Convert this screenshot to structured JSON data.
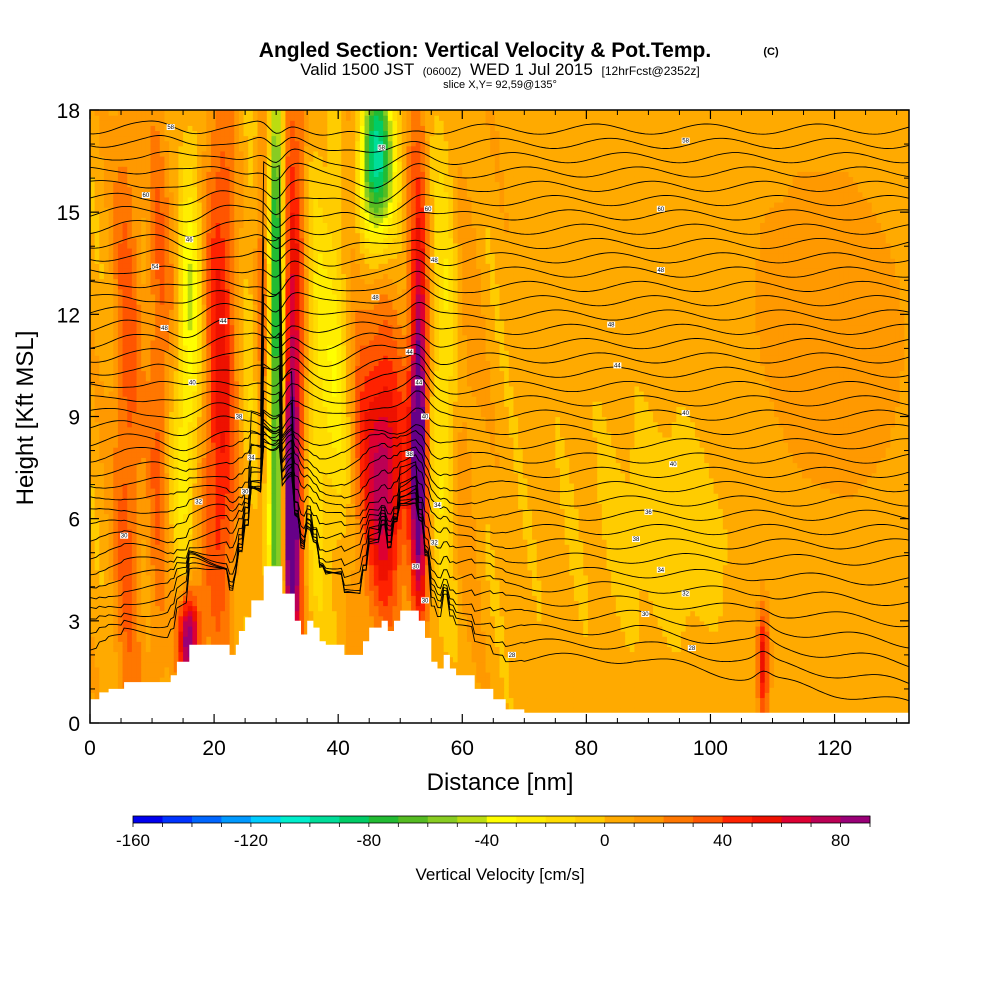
{
  "chart_data": {
    "type": "heatmap",
    "title": "Angled Section: Vertical Velocity & Pot.Temp.",
    "title_unit": "(C)",
    "subtitle_main": "Valid 1500 JST",
    "subtitle_z": "(0600Z)",
    "subtitle_date": "WED 1 Jul 2015",
    "subtitle_fcst": "[12hrFcst@2352z]",
    "slice_info": "slice X,Y= 92,59@135°",
    "xlabel": "Distance [nm]",
    "ylabel": "Height [Kft MSL]",
    "xlim": [
      0,
      132
    ],
    "ylim": [
      0,
      18
    ],
    "x_ticks": [
      "0",
      "20",
      "40",
      "60",
      "80",
      "100",
      "120"
    ],
    "y_ticks": [
      "0",
      "3",
      "6",
      "9",
      "12",
      "15",
      "18"
    ],
    "colorbar": {
      "label": "Vertical Velocity [cm/s]",
      "range": [
        -160,
        90
      ],
      "step": 10,
      "ticks": [
        "-160",
        "-120",
        "-80",
        "-40",
        "0",
        "40",
        "80"
      ],
      "colors": [
        "#0000ee",
        "#0033ff",
        "#0066ff",
        "#0099ff",
        "#00ccff",
        "#00eecc",
        "#00dd99",
        "#00cc66",
        "#22bb33",
        "#55bb22",
        "#88cc22",
        "#bbdd11",
        "#ffff00",
        "#ffee00",
        "#ffdd00",
        "#ffcc00",
        "#ffaa00",
        "#ff9900",
        "#ff7700",
        "#ff5500",
        "#ff2200",
        "#ee1100",
        "#dd0033",
        "#bb0055",
        "#990077",
        "#660088"
      ]
    },
    "background_velocity": 5,
    "features": [
      {
        "x": 6,
        "z": 9,
        "sx": 1.6,
        "sz": 8,
        "w": 30
      },
      {
        "x": 11,
        "z": 10,
        "sx": 1.2,
        "sz": 7,
        "w": 26
      },
      {
        "x": 16,
        "z": 2.5,
        "sx": 1.2,
        "sz": 1.0,
        "w": 90
      },
      {
        "x": 14,
        "z": 13,
        "sx": 1.3,
        "sz": 3,
        "w": 22
      },
      {
        "x": 16,
        "z": 13,
        "sx": 1.6,
        "sz": 3,
        "w": -45
      },
      {
        "x": 15,
        "z": 8,
        "sx": 1.5,
        "sz": 3,
        "w": -25
      },
      {
        "x": 21,
        "z": 12,
        "sx": 2.0,
        "sz": 5,
        "w": 45
      },
      {
        "x": 21,
        "z": 6,
        "sx": 2.0,
        "sz": 3,
        "w": 20
      },
      {
        "x": 26,
        "z": 11,
        "sx": 1.8,
        "sz": 6,
        "w": -15
      },
      {
        "x": 28,
        "z": 13,
        "sx": 1.0,
        "sz": 5,
        "w": 32
      },
      {
        "x": 30,
        "z": 9,
        "sx": 0.9,
        "sz": 6,
        "w": -90
      },
      {
        "x": 30,
        "z": 16,
        "sx": 0.7,
        "sz": 3,
        "w": -45
      },
      {
        "x": 32.5,
        "z": 6,
        "sx": 0.9,
        "sz": 3.5,
        "w": 95
      },
      {
        "x": 33,
        "z": 12,
        "sx": 1.6,
        "sz": 7,
        "w": 45
      },
      {
        "x": 36,
        "z": 10,
        "sx": 1.7,
        "sz": 5,
        "w": -28
      },
      {
        "x": 40,
        "z": 11,
        "sx": 1.6,
        "sz": 4,
        "w": -32
      },
      {
        "x": 46,
        "z": 16.5,
        "sx": 2.0,
        "sz": 1.8,
        "w": -110
      },
      {
        "x": 42,
        "z": 16,
        "sx": 1.5,
        "sz": 2.5,
        "w": 25
      },
      {
        "x": 48,
        "z": 7,
        "sx": 2.2,
        "sz": 2.5,
        "w": 60
      },
      {
        "x": 45,
        "z": 9,
        "sx": 2.5,
        "sz": 4,
        "w": 30
      },
      {
        "x": 53,
        "z": 8,
        "sx": 0.8,
        "sz": 3,
        "w": 88
      },
      {
        "x": 53,
        "z": 11,
        "sx": 1.3,
        "sz": 6,
        "w": 42
      },
      {
        "x": 57,
        "z": 10,
        "sx": 1.8,
        "sz": 5,
        "w": -30
      },
      {
        "x": 60,
        "z": 9,
        "sx": 1.8,
        "sz": 5,
        "w": 15
      },
      {
        "x": 108.5,
        "z": 1.8,
        "sx": 0.7,
        "sz": 1.2,
        "w": 55
      },
      {
        "x": 95,
        "z": 6,
        "sx": 14,
        "sz": 3.5,
        "w": -8
      },
      {
        "x": 118,
        "z": 11,
        "sx": 10,
        "sz": 4,
        "w": 12
      }
    ],
    "terrain": [
      [
        0,
        0.7
      ],
      [
        1.5,
        0.7
      ],
      [
        1.5,
        0.9
      ],
      [
        3,
        0.9
      ],
      [
        3,
        1.0
      ],
      [
        5.5,
        1.0
      ],
      [
        5.5,
        1.2
      ],
      [
        13,
        1.2
      ],
      [
        13,
        1.4
      ],
      [
        14,
        1.4
      ],
      [
        14,
        1.8
      ],
      [
        16,
        1.8
      ],
      [
        16,
        2.3
      ],
      [
        22.5,
        2.3
      ],
      [
        22.5,
        2.0
      ],
      [
        23.5,
        2.0
      ],
      [
        23.5,
        2.3
      ],
      [
        24,
        2.3
      ],
      [
        24,
        2.7
      ],
      [
        25,
        2.7
      ],
      [
        25,
        3.1
      ],
      [
        26,
        3.1
      ],
      [
        26,
        3.6
      ],
      [
        28,
        3.6
      ],
      [
        28,
        4.6
      ],
      [
        31,
        4.6
      ],
      [
        31,
        3.8
      ],
      [
        33,
        3.8
      ],
      [
        33,
        3.0
      ],
      [
        34,
        3.0
      ],
      [
        34,
        2.6
      ],
      [
        35,
        2.6
      ],
      [
        35,
        3.0
      ],
      [
        36,
        3.0
      ],
      [
        36,
        2.8
      ],
      [
        37,
        2.8
      ],
      [
        37,
        2.4
      ],
      [
        38,
        2.4
      ],
      [
        38,
        2.3
      ],
      [
        41,
        2.3
      ],
      [
        41,
        2.0
      ],
      [
        44,
        2.0
      ],
      [
        44,
        2.4
      ],
      [
        45,
        2.4
      ],
      [
        45,
        2.8
      ],
      [
        47,
        2.8
      ],
      [
        47,
        3.0
      ],
      [
        48,
        3.0
      ],
      [
        48,
        2.7
      ],
      [
        49,
        2.7
      ],
      [
        49,
        3.0
      ],
      [
        50,
        3.0
      ],
      [
        50,
        3.3
      ],
      [
        53,
        3.3
      ],
      [
        53,
        3.0
      ],
      [
        54,
        3.0
      ],
      [
        54,
        2.5
      ],
      [
        55,
        2.5
      ],
      [
        55,
        1.8
      ],
      [
        56,
        1.8
      ],
      [
        56,
        1.6
      ],
      [
        57,
        1.6
      ],
      [
        57,
        2.0
      ],
      [
        58,
        2.0
      ],
      [
        58,
        1.6
      ],
      [
        59,
        1.6
      ],
      [
        59,
        1.4
      ],
      [
        62,
        1.4
      ],
      [
        62,
        1.0
      ],
      [
        65,
        1.0
      ],
      [
        65,
        0.7
      ],
      [
        67,
        0.7
      ],
      [
        67,
        0.4
      ],
      [
        70,
        0.4
      ],
      [
        70,
        0.3
      ],
      [
        132,
        0.3
      ]
    ],
    "theta_contours": {
      "count": 38,
      "base": 1.9,
      "spacing": 0.42,
      "label_values": [
        "26",
        "28",
        "30",
        "32",
        "34",
        "36",
        "38",
        "40",
        "42",
        "44",
        "46",
        "48",
        "50",
        "52",
        "54",
        "56",
        "58",
        "60"
      ],
      "labels": [
        {
          "x": 5.5,
          "z": 5.5,
          "text": "30"
        },
        {
          "x": 17.5,
          "z": 6.5,
          "text": "32"
        },
        {
          "x": 25,
          "z": 6.8,
          "text": "30"
        },
        {
          "x": 26,
          "z": 7.8,
          "text": "34"
        },
        {
          "x": 24,
          "z": 9,
          "text": "38"
        },
        {
          "x": 21.5,
          "z": 11.8,
          "text": "44"
        },
        {
          "x": 16.5,
          "z": 10,
          "text": "40"
        },
        {
          "x": 12,
          "z": 11.6,
          "text": "48"
        },
        {
          "x": 10.5,
          "z": 13.4,
          "text": "54"
        },
        {
          "x": 16,
          "z": 14.2,
          "text": "46"
        },
        {
          "x": 9,
          "z": 15.5,
          "text": "60"
        },
        {
          "x": 13,
          "z": 17.5,
          "text": "58"
        },
        {
          "x": 47,
          "z": 16.9,
          "text": "58"
        },
        {
          "x": 54.5,
          "z": 15.1,
          "text": "60"
        },
        {
          "x": 55.5,
          "z": 13.6,
          "text": "48"
        },
        {
          "x": 46,
          "z": 12.5,
          "text": "48"
        },
        {
          "x": 51.5,
          "z": 10.9,
          "text": "44"
        },
        {
          "x": 53,
          "z": 10,
          "text": "44"
        },
        {
          "x": 54,
          "z": 9.0,
          "text": "40"
        },
        {
          "x": 51.5,
          "z": 7.9,
          "text": "38"
        },
        {
          "x": 56,
          "z": 6.4,
          "text": "34"
        },
        {
          "x": 55.5,
          "z": 5.3,
          "text": "32"
        },
        {
          "x": 52.5,
          "z": 4.6,
          "text": "30"
        },
        {
          "x": 54,
          "z": 3.6,
          "text": "30"
        },
        {
          "x": 68,
          "z": 2.0,
          "text": "28"
        },
        {
          "x": 96,
          "z": 17.1,
          "text": "58"
        },
        {
          "x": 92,
          "z": 15.1,
          "text": "60"
        },
        {
          "x": 92,
          "z": 13.3,
          "text": "48"
        },
        {
          "x": 84,
          "z": 11.7,
          "text": "48"
        },
        {
          "x": 85,
          "z": 10.5,
          "text": "44"
        },
        {
          "x": 96,
          "z": 9.1,
          "text": "40"
        },
        {
          "x": 94,
          "z": 7.6,
          "text": "40"
        },
        {
          "x": 90,
          "z": 6.2,
          "text": "36"
        },
        {
          "x": 88,
          "z": 5.4,
          "text": "38"
        },
        {
          "x": 92,
          "z": 4.5,
          "text": "34"
        },
        {
          "x": 96,
          "z": 3.8,
          "text": "32"
        },
        {
          "x": 89.5,
          "z": 3.2,
          "text": "30"
        },
        {
          "x": 97,
          "z": 2.2,
          "text": "28"
        }
      ]
    }
  }
}
